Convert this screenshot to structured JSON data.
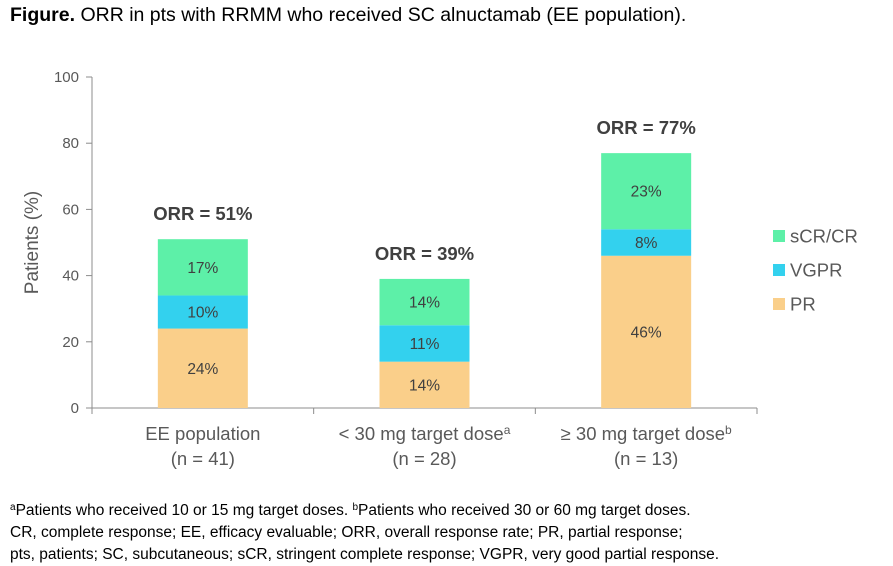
{
  "title": {
    "lead": "Figure.",
    "text": "ORR in pts with RRMM who received SC alnuctamab (EE population)."
  },
  "chart_data": {
    "type": "bar",
    "stacked": true,
    "ylabel": "Patients (%)",
    "ylim": [
      0,
      100
    ],
    "yticks": [
      "0",
      "20",
      "40",
      "60",
      "80",
      "100"
    ],
    "categories": [
      {
        "label": "EE population",
        "sup": "",
        "n": "(n = 41)",
        "total_label": "ORR = 51%"
      },
      {
        "label": "< 30 mg target dose",
        "sup": "a",
        "n": "(n = 28)",
        "total_label": "ORR = 39%"
      },
      {
        "label": "≥ 30 mg target dose",
        "sup": "b",
        "n": "(n = 13)",
        "total_label": "ORR = 77%"
      }
    ],
    "series": [
      {
        "name": "PR",
        "color": "#FACF8A",
        "values": [
          24,
          14,
          46
        ],
        "labels": [
          "24%",
          "14%",
          "46%"
        ]
      },
      {
        "name": "VGPR",
        "color": "#33D1EE",
        "values": [
          10,
          11,
          8
        ],
        "labels": [
          "10%",
          "11%",
          "8%"
        ]
      },
      {
        "name": "sCR/CR",
        "color": "#5DF0A8",
        "values": [
          17,
          14,
          23
        ],
        "labels": [
          "17%",
          "14%",
          "23%"
        ]
      }
    ],
    "legend": {
      "position": "right",
      "order": [
        "sCR/CR",
        "VGPR",
        "PR"
      ]
    }
  },
  "footnotes": {
    "a_mark": "a",
    "a_text": "Patients who received 10 or 15 mg target doses.",
    "b_mark": "b",
    "b_text": "Patients who received 30 or 60 mg target doses.",
    "line2": "CR, complete response; EE, efficacy evaluable; ORR, overall response rate; PR, partial response;",
    "line3": "pts, patients; SC, subcutaneous; sCR, stringent complete response; VGPR, very good partial response."
  }
}
